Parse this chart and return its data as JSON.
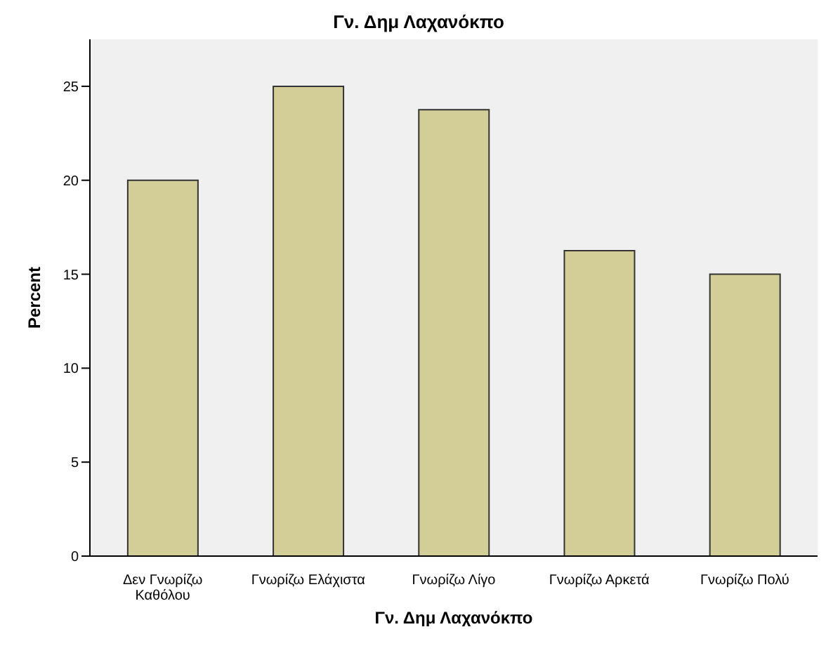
{
  "chart_data": {
    "type": "bar",
    "title": "Γν. Δημ Λαχανόκπο",
    "xlabel": "Γν. Δημ Λαχανόκπο",
    "ylabel": "Percent",
    "categories": [
      "Δεν Γνωρίζω Καθόλου",
      "Γνωρίζω Ελάχιστα",
      "Γνωρίζω Λίγο",
      "Γνωρίζω Αρκετά",
      "Γνωρίζω Πολύ"
    ],
    "values": [
      20,
      25,
      23.75,
      16.25,
      15
    ],
    "color": "#d3ce97",
    "ylim": [
      0,
      27.5
    ],
    "yticks": [
      0,
      5,
      10,
      15,
      20,
      25
    ],
    "grid": false
  }
}
